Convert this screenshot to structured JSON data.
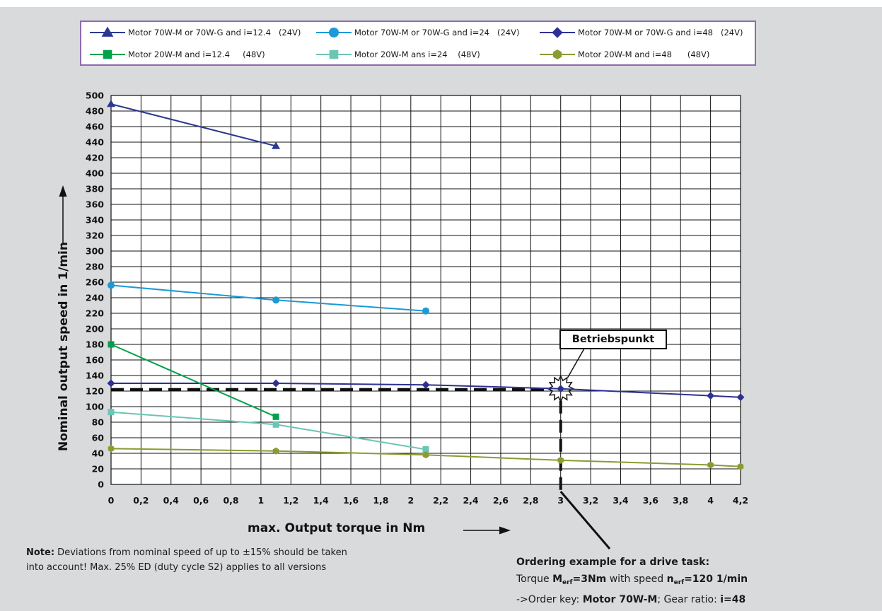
{
  "chart_data": {
    "type": "line",
    "title": "",
    "xlabel": "max. Output torque in Nm",
    "ylabel": "Nominal output speed in 1/min",
    "xlim": [
      0,
      4.2
    ],
    "ylim": [
      0,
      500
    ],
    "x_ticks": [
      "0",
      "0,2",
      "0,4",
      "0,6",
      "0,8",
      "1",
      "1,2",
      "1,4",
      "1,6",
      "1,8",
      "2",
      "2,2",
      "2,4",
      "2,6",
      "2,8",
      "3",
      "3,2",
      "3,4",
      "3,6",
      "3,8",
      "4",
      "4,2"
    ],
    "y_ticks": [
      "0",
      "20",
      "40",
      "60",
      "80",
      "100",
      "120",
      "140",
      "160",
      "180",
      "200",
      "220",
      "240",
      "260",
      "280",
      "300",
      "320",
      "340",
      "360",
      "380",
      "400",
      "420",
      "440",
      "460",
      "480",
      "500"
    ],
    "grid": true,
    "legend_position": "top",
    "series": [
      {
        "name": "Motor 70W-M or 70W-G and i=12.4   (24V)",
        "color": "#2b3990",
        "marker": "triangle",
        "points": [
          [
            0,
            489
          ],
          [
            1.1,
            435
          ]
        ]
      },
      {
        "name": "Motor 70W-M or 70W-G and i=24   (24V)",
        "color": "#1b9ad6",
        "marker": "circle",
        "points": [
          [
            0,
            256
          ],
          [
            1.1,
            237
          ],
          [
            2.1,
            223
          ]
        ]
      },
      {
        "name": "Motor 70W-M or 70W-G and i=48   (24V)",
        "color": "#2e3192",
        "marker": "diamond",
        "points": [
          [
            0,
            130
          ],
          [
            1.1,
            130
          ],
          [
            2.1,
            128
          ],
          [
            3,
            123
          ],
          [
            4,
            114
          ],
          [
            4.2,
            112
          ]
        ]
      },
      {
        "name": "Motor 20W-M and i=12.4     (48V)",
        "color": "#00a14b",
        "marker": "square",
        "points": [
          [
            0,
            180
          ],
          [
            1.1,
            87
          ]
        ]
      },
      {
        "name": "Motor 20W-M ans i=24    (48V)",
        "color": "#6cc5b4",
        "marker": "square",
        "points": [
          [
            0,
            93
          ],
          [
            1.1,
            77
          ],
          [
            2.1,
            45
          ]
        ]
      },
      {
        "name": "Motor 20W-M and i=48      (48V)",
        "color": "#8b9b32",
        "marker": "hexagon",
        "points": [
          [
            0,
            46
          ],
          [
            1.1,
            43
          ],
          [
            2.1,
            38
          ],
          [
            3,
            31
          ],
          [
            4,
            25
          ],
          [
            4.2,
            23
          ]
        ]
      }
    ],
    "annotations": {
      "operating_point": {
        "label": "Betriebspunkt",
        "x": 3,
        "y": 123
      },
      "guide_speed": 122
    }
  },
  "note": {
    "bold": "Note:",
    "text": " Deviations from nominal speed of up to ±15% should be taken into account! Max. 25% ED (duty cycle S2) applies to all versions"
  },
  "ordering": {
    "heading": "Ordering example for a drive task:",
    "line2_a": "Torque ",
    "line2_M": "M",
    "line2_M_sub": "erf",
    "line2_b": "=3Nm",
    "line2_c": " with speed ",
    "line2_n": "n",
    "line2_n_sub": "erf",
    "line2_d": "=120 1/min",
    "line3_a": "->Order key: ",
    "line3_b": "Motor 70W-M",
    "line3_c": "; Gear ratio: ",
    "line3_d": "i=48"
  }
}
